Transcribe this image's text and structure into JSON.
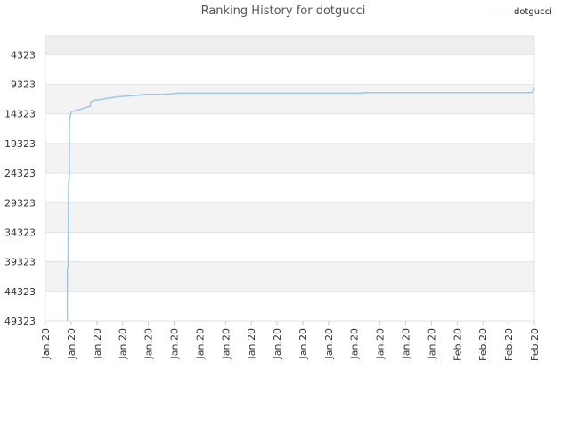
{
  "chart_data": {
    "type": "line",
    "title": "Ranking History for dotgucci",
    "xlabel": "",
    "ylabel": "",
    "y_reversed": true,
    "ylim": [
      49323,
      1100
    ],
    "ytick_labels": [
      "4323",
      "9323",
      "14323",
      "19323",
      "24323",
      "29323",
      "34323",
      "39323",
      "44323",
      "49323"
    ],
    "yticks": [
      4323,
      9323,
      14323,
      19323,
      24323,
      29323,
      34323,
      39323,
      44323,
      49323
    ],
    "xtick_labels": [
      "Jan.20",
      "Jan.20",
      "Jan.20",
      "Jan.20",
      "Jan.20",
      "Jan.20",
      "Jan.20",
      "Jan.20",
      "Jan.20",
      "Jan.20",
      "Jan.20",
      "Jan.20",
      "Jan.20",
      "Jan.20",
      "Jan.20",
      "Jan.20",
      "Feb.20",
      "Feb.20",
      "Feb.20",
      "Feb.20"
    ],
    "x_range": [
      0,
      19
    ],
    "grid": true,
    "legend_position": "top-right",
    "series": [
      {
        "name": "dotgucci",
        "color": "#99c9f0",
        "points": [
          [
            0.85,
            49323
          ],
          [
            0.85,
            40500
          ],
          [
            0.88,
            40300
          ],
          [
            0.9,
            25800
          ],
          [
            0.93,
            25600
          ],
          [
            0.93,
            16000
          ],
          [
            0.95,
            15000
          ],
          [
            1.0,
            14100
          ],
          [
            1.05,
            13900
          ],
          [
            1.2,
            13700
          ],
          [
            1.4,
            13500
          ],
          [
            1.6,
            13200
          ],
          [
            1.75,
            13000
          ],
          [
            1.75,
            12300
          ],
          [
            1.9,
            12000
          ],
          [
            2.1,
            11900
          ],
          [
            2.4,
            11700
          ],
          [
            2.7,
            11500
          ],
          [
            2.9,
            11400
          ],
          [
            3.1,
            11300
          ],
          [
            3.5,
            11200
          ],
          [
            3.75,
            11100
          ],
          [
            3.75,
            11000
          ],
          [
            4.5,
            11000
          ],
          [
            5.05,
            10900
          ],
          [
            5.05,
            10800
          ],
          [
            6.0,
            10800
          ],
          [
            8.0,
            10800
          ],
          [
            10.0,
            10800
          ],
          [
            12.3,
            10800
          ],
          [
            12.3,
            10700
          ],
          [
            14.0,
            10700
          ],
          [
            16.0,
            10700
          ],
          [
            18.0,
            10700
          ],
          [
            18.9,
            10700
          ],
          [
            19.0,
            10000
          ]
        ]
      }
    ]
  }
}
